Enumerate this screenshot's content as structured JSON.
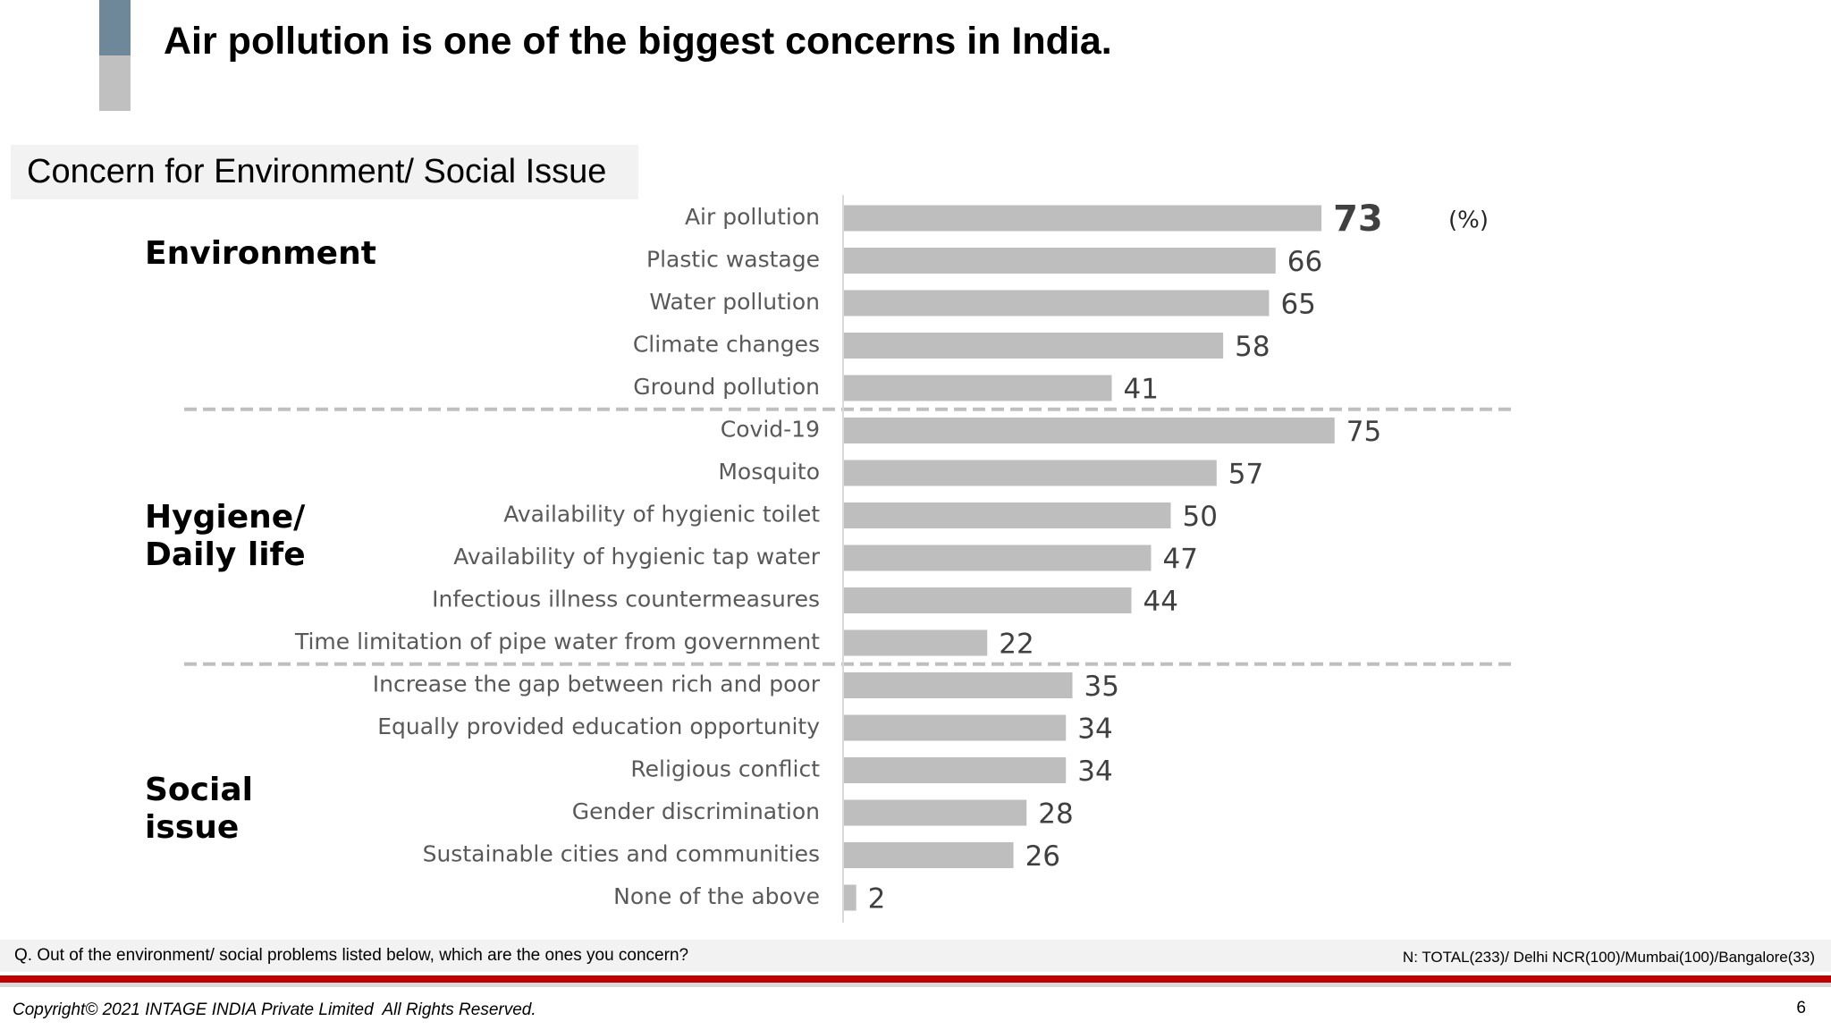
{
  "title": "Air pollution is one of the biggest concerns in India.",
  "chart_data": {
    "type": "bar",
    "orientation": "horizontal",
    "title": "Concern for Environment/ Social Issue",
    "unit": "(%)",
    "color": "#bfbebe",
    "xlim": [
      0,
      100
    ],
    "groups": [
      {
        "name": "Environment",
        "categories": [
          "Air pollution",
          "Plastic wastage",
          "Water pollution",
          "Climate changes",
          "Ground pollution"
        ],
        "values": [
          73,
          66,
          65,
          58,
          41
        ]
      },
      {
        "name": "Hygiene/ Daily life",
        "categories": [
          "Covid-19",
          "Mosquito",
          "Availability of hygienic toilet",
          "Availability of hygienic tap water",
          "Infectious illness countermeasures",
          "Time limitation of pipe water from government"
        ],
        "values": [
          75,
          57,
          50,
          47,
          44,
          22
        ]
      },
      {
        "name": "Social issue",
        "categories": [
          "Increase the gap between rich and poor",
          "Equally provided education opportunity",
          "Religious conflict",
          "Gender discrimination",
          "Sustainable cities and communities",
          "None of the above"
        ],
        "values": [
          35,
          34,
          34,
          28,
          26,
          2
        ]
      }
    ]
  },
  "footer": {
    "question": "Q. Out of the environment/ social problems listed below, which are the ones you concern?",
    "sample": "N: TOTAL(233)/ Delhi NCR(100)/Mumbai(100)/Bangalore(33)",
    "copyright": "Copyright© 2021 INTAGE INDIA Private Limited  All Rights Reserved.",
    "page": "6"
  }
}
